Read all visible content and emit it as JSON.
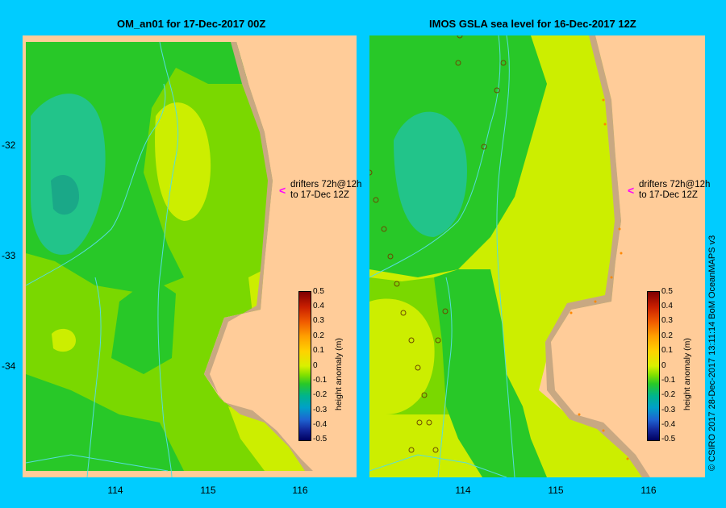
{
  "left_panel": {
    "title": "OM_an01  for 17-Dec-2017 00Z",
    "drifter_note": [
      "drifters 72h@12h",
      "to 17-Dec 12Z"
    ]
  },
  "right_panel": {
    "title": "IMOS GSLA sea level  for 16-Dec-2017 12Z",
    "drifter_note": [
      "drifters 72h@12h",
      "to 17-Dec 12Z"
    ]
  },
  "axes": {
    "lat_ticks": [
      "-32",
      "-33",
      "-34"
    ],
    "lon_ticks": [
      "114",
      "115",
      "116"
    ]
  },
  "colorbar": {
    "label": "height anomaly (m)",
    "ticks": [
      "0.5",
      "0.4",
      "0.3",
      "0.2",
      "0.1",
      "0",
      "-0.1",
      "-0.2",
      "-0.3",
      "-0.4",
      "-0.5"
    ]
  },
  "colors": {
    "background": "#00ccff",
    "land": "#ffcc99",
    "coast_shelf": "#c8a882",
    "anomaly_neg_0_1": "#22c48a",
    "anomaly_zero": "#28c828",
    "anomaly_pos_0_05": "#7ad800",
    "anomaly_pos_0_1": "#ccee00",
    "drifter_arrow": "#ff00ff"
  },
  "credit": "© CSIRO 2017   28-Dec-2017 13:11:14 BoM OceanMAPS v3"
}
